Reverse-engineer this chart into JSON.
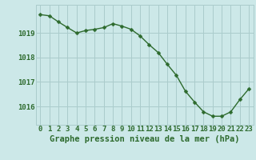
{
  "x": [
    0,
    1,
    2,
    3,
    4,
    5,
    6,
    7,
    8,
    9,
    10,
    11,
    12,
    13,
    14,
    15,
    16,
    17,
    18,
    19,
    20,
    21,
    22,
    23
  ],
  "y": [
    1019.75,
    1019.7,
    1019.45,
    1019.22,
    1019.0,
    1019.1,
    1019.15,
    1019.22,
    1019.38,
    1019.28,
    1019.15,
    1018.88,
    1018.52,
    1018.2,
    1017.72,
    1017.27,
    1016.62,
    1016.18,
    1015.78,
    1015.6,
    1015.6,
    1015.78,
    1016.28,
    1016.72
  ],
  "line_color": "#2d6a2d",
  "marker": "D",
  "marker_size": 2.5,
  "bg_color": "#cce8e8",
  "plot_bg_color": "#cce8e8",
  "grid_color": "#aacccc",
  "title": "Graphe pression niveau de la mer (hPa)",
  "ylim": [
    1015.25,
    1020.15
  ],
  "yticks": [
    1016,
    1017,
    1018,
    1019
  ],
  "xticks": [
    0,
    1,
    2,
    3,
    4,
    5,
    6,
    7,
    8,
    9,
    10,
    11,
    12,
    13,
    14,
    15,
    16,
    17,
    18,
    19,
    20,
    21,
    22,
    23
  ],
  "text_color": "#2d6a2d",
  "title_fontsize": 7.5,
  "tick_fontsize": 6.5,
  "linewidth": 1.0
}
